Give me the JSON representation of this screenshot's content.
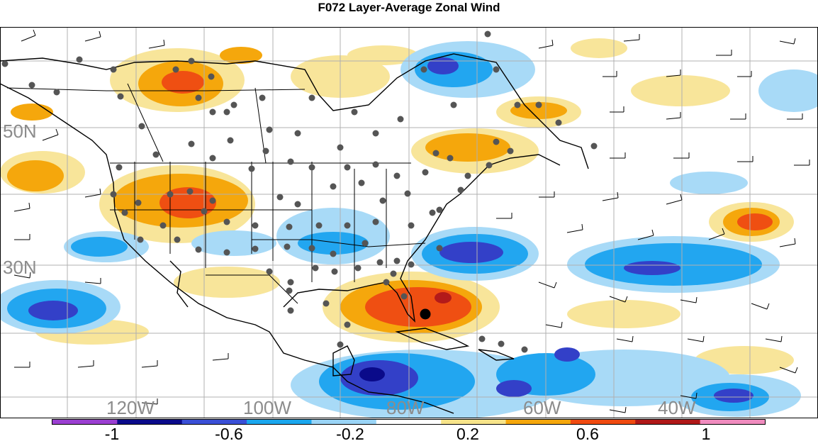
{
  "title": "F072 Layer-Average Zonal Wind",
  "map": {
    "lat_labels": [
      "50N",
      "30N"
    ],
    "lon_labels": [
      "120W",
      "100W",
      "80W",
      "60W",
      "40W"
    ]
  },
  "colorbar": {
    "tick_labels": [
      "-1",
      "-0.6",
      "-0.2",
      "0.2",
      "0.6",
      "1"
    ],
    "colors": [
      "#9b3fd1",
      "#0a0a8a",
      "#3a4fd6",
      "#1aa7ee",
      "#9ad4f6",
      "#ffffff",
      "#f7e48a",
      "#f5a70c",
      "#f04a10",
      "#b01818",
      "#f08cbf"
    ]
  },
  "palette": {
    "dark_blue": "#3340c8",
    "mid_blue": "#22a6f0",
    "light_blue": "#a8daf7",
    "light_yellow": "#f8e59a",
    "orange": "#f5a70c",
    "red": "#ef4f12",
    "dark_red": "#b31a1a",
    "station_dot": "#555555",
    "grid": "#b0b0b0"
  }
}
